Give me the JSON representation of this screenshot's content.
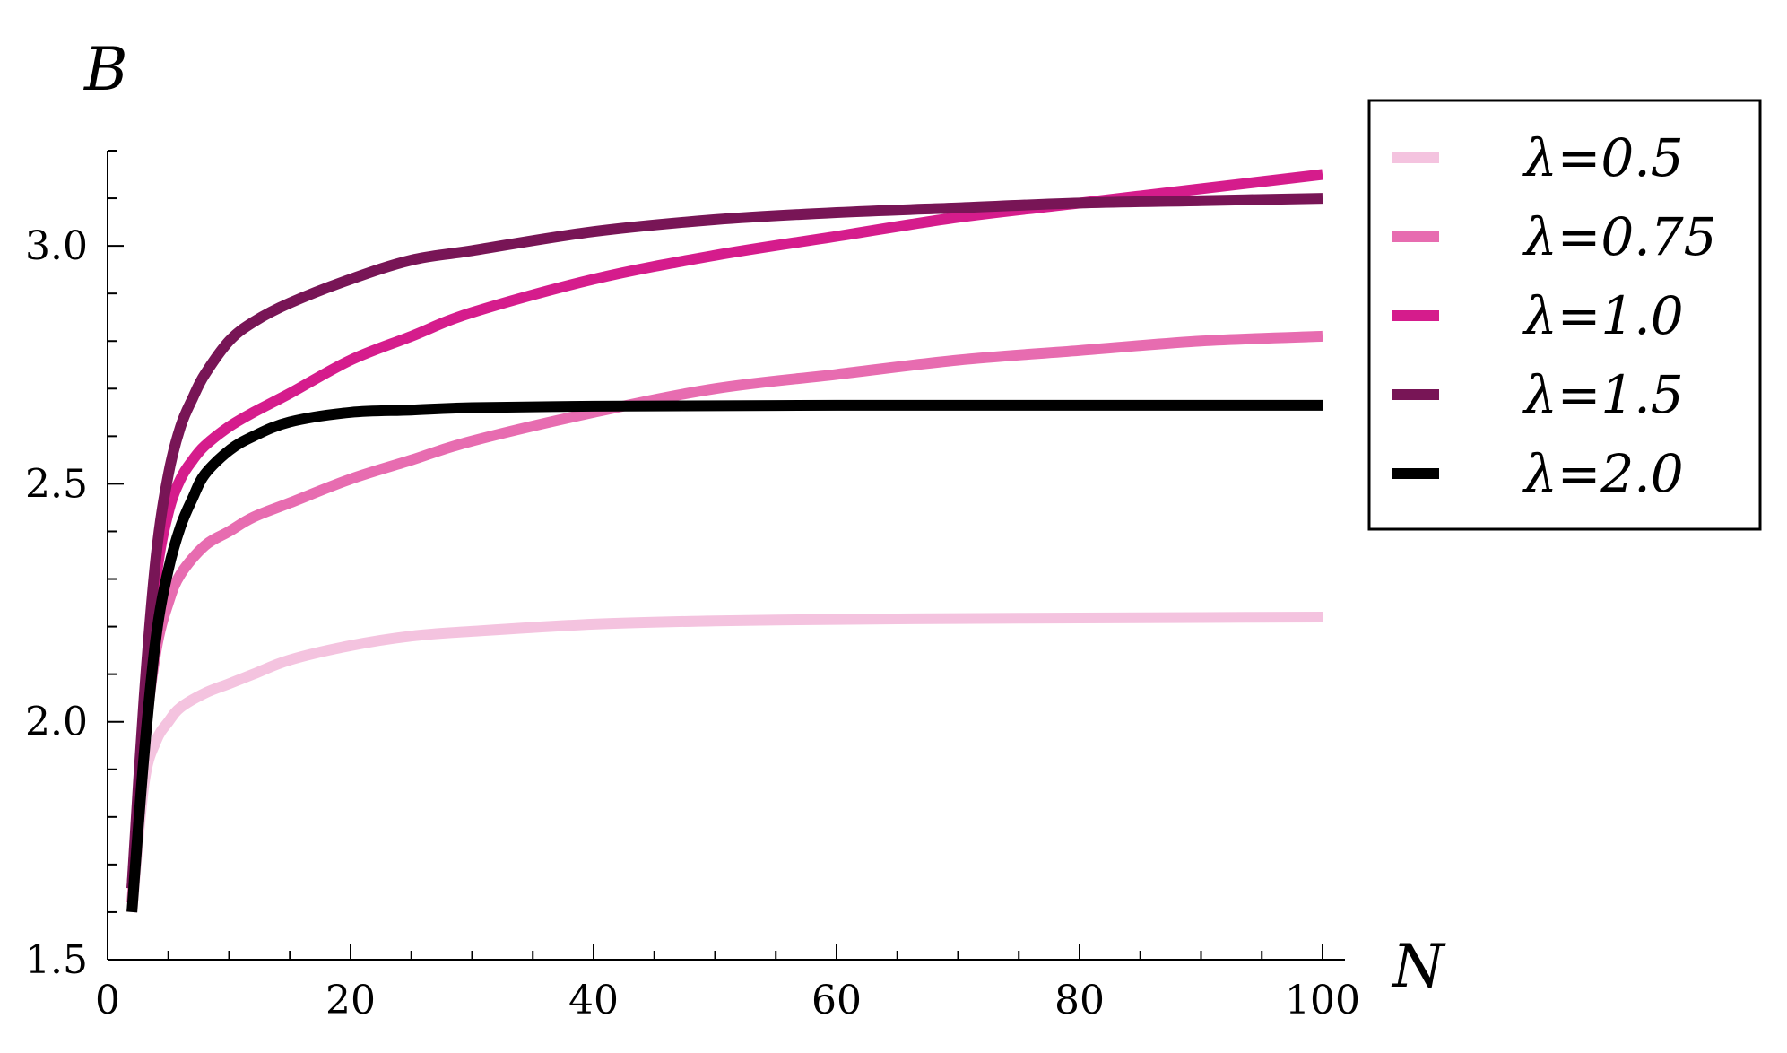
{
  "chart_data": {
    "type": "line",
    "xlabel": "N",
    "ylabel": "B",
    "xlim": [
      0,
      100
    ],
    "ylim": [
      1.5,
      3.2
    ],
    "xticks": [
      "0",
      "20",
      "40",
      "60",
      "80",
      "100"
    ],
    "yticks": [
      "1.5",
      "2.0",
      "2.5",
      "3.0"
    ],
    "legend": {
      "placement": "right"
    },
    "grid": false,
    "series": [
      {
        "name": "λ=0.5",
        "color": "#f4c3df",
        "x": [
          2,
          3,
          4,
          5,
          6,
          8,
          10,
          12,
          15,
          20,
          25,
          30,
          40,
          50,
          60,
          70,
          80,
          90,
          100
        ],
        "y": [
          1.6,
          1.87,
          1.96,
          2.0,
          2.03,
          2.06,
          2.08,
          2.1,
          2.13,
          2.16,
          2.18,
          2.19,
          2.205,
          2.212,
          2.215,
          2.217,
          2.218,
          2.219,
          2.22
        ]
      },
      {
        "name": "λ=0.75",
        "color": "#e76cb0",
        "x": [
          2,
          3,
          4,
          5,
          6,
          8,
          10,
          12,
          15,
          20,
          25,
          30,
          40,
          50,
          60,
          70,
          80,
          90,
          100
        ],
        "y": [
          1.62,
          1.95,
          2.15,
          2.25,
          2.31,
          2.37,
          2.4,
          2.43,
          2.46,
          2.51,
          2.55,
          2.59,
          2.65,
          2.7,
          2.73,
          2.76,
          2.78,
          2.8,
          2.81
        ]
      },
      {
        "name": "λ=1.0",
        "color": "#d51c8c",
        "x": [
          2,
          3,
          4,
          5,
          6,
          7,
          8,
          10,
          12,
          15,
          20,
          25,
          30,
          40,
          50,
          60,
          70,
          80,
          90,
          100
        ],
        "y": [
          1.65,
          2.0,
          2.3,
          2.44,
          2.51,
          2.55,
          2.58,
          2.62,
          2.65,
          2.69,
          2.76,
          2.81,
          2.86,
          2.93,
          2.98,
          3.02,
          3.06,
          3.09,
          3.12,
          3.15
        ]
      },
      {
        "name": "λ=1.5",
        "color": "#781556",
        "x": [
          2,
          3,
          4,
          5,
          6,
          7,
          8,
          10,
          12,
          15,
          20,
          25,
          30,
          40,
          50,
          60,
          70,
          80,
          90,
          100
        ],
        "y": [
          1.65,
          2.05,
          2.35,
          2.52,
          2.62,
          2.68,
          2.73,
          2.8,
          2.84,
          2.88,
          2.93,
          2.97,
          2.99,
          3.03,
          3.055,
          3.07,
          3.08,
          3.09,
          3.095,
          3.1
        ]
      },
      {
        "name": "λ=2.0",
        "color": "#000000",
        "x": [
          2,
          3,
          4,
          5,
          6,
          7,
          8,
          10,
          12,
          15,
          20,
          25,
          30,
          40,
          50,
          60,
          70,
          80,
          90,
          100
        ],
        "y": [
          1.6,
          1.93,
          2.18,
          2.32,
          2.41,
          2.47,
          2.52,
          2.57,
          2.6,
          2.63,
          2.65,
          2.655,
          2.66,
          2.663,
          2.664,
          2.665,
          2.665,
          2.665,
          2.665,
          2.665
        ]
      }
    ]
  }
}
